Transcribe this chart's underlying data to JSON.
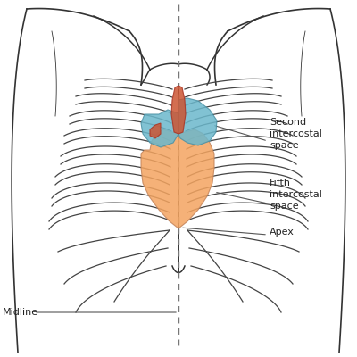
{
  "background_color": "#ffffff",
  "body_outline_color": "#333333",
  "rib_color": "#444444",
  "heart_orange": "#F4A460",
  "heart_orange_alpha": 0.85,
  "heart_blue": "#6BB8CC",
  "heart_blue_alpha": 0.85,
  "heart_red": "#CC5533",
  "heart_red_alpha": 0.85,
  "dashed_line_color": "#777777",
  "annotation_line_color": "#555555",
  "text_color": "#222222",
  "midline_label": "Midline",
  "label_second": "Second\nintercostal\nspace",
  "label_fifth": "Fifth\nintercostal\nspace",
  "label_apex": "Apex",
  "figsize": [
    4.0,
    4.0
  ],
  "dpi": 100
}
